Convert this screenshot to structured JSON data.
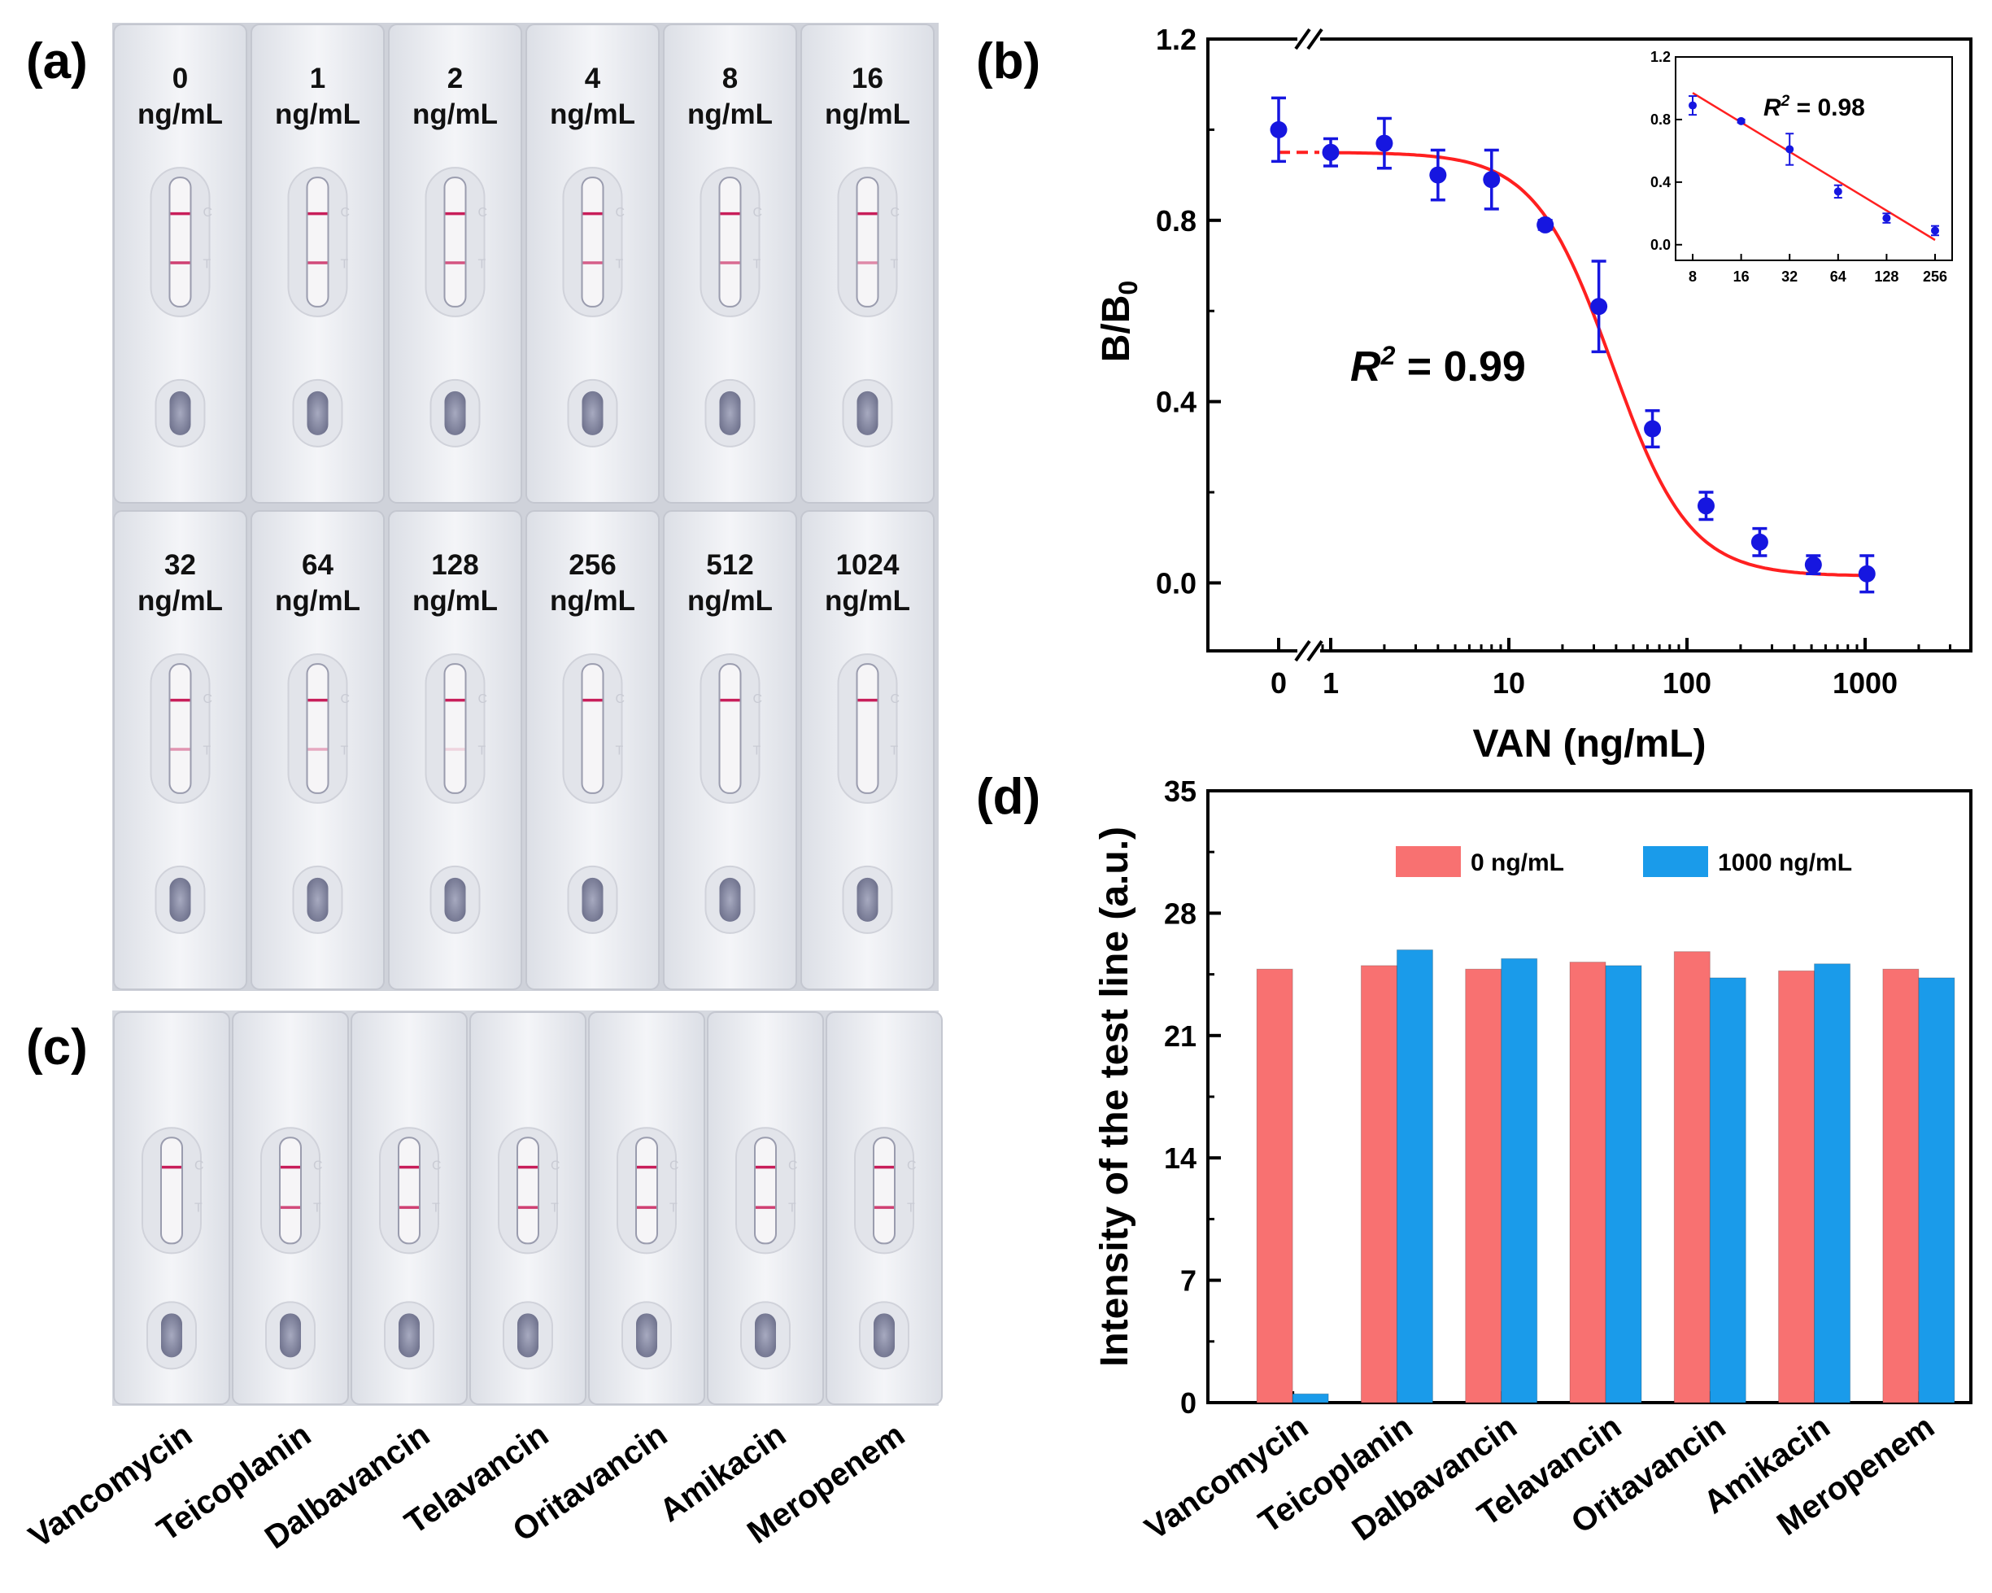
{
  "panels": {
    "a": {
      "letter": "(a)",
      "row1": [
        {
          "conc": "0",
          "unit": "ng/mL",
          "c_intensity": 1.0,
          "t_intensity": 0.85
        },
        {
          "conc": "1",
          "unit": "ng/mL",
          "c_intensity": 1.0,
          "t_intensity": 0.8
        },
        {
          "conc": "2",
          "unit": "ng/mL",
          "c_intensity": 1.0,
          "t_intensity": 0.75
        },
        {
          "conc": "4",
          "unit": "ng/mL",
          "c_intensity": 1.0,
          "t_intensity": 0.7
        },
        {
          "conc": "8",
          "unit": "ng/mL",
          "c_intensity": 1.0,
          "t_intensity": 0.65
        },
        {
          "conc": "16",
          "unit": "ng/mL",
          "c_intensity": 1.0,
          "t_intensity": 0.5
        }
      ],
      "row2": [
        {
          "conc": "32",
          "unit": "ng/mL",
          "c_intensity": 1.0,
          "t_intensity": 0.45
        },
        {
          "conc": "64",
          "unit": "ng/mL",
          "c_intensity": 1.0,
          "t_intensity": 0.35
        },
        {
          "conc": "128",
          "unit": "ng/mL",
          "c_intensity": 1.0,
          "t_intensity": 0.15
        },
        {
          "conc": "256",
          "unit": "ng/mL",
          "c_intensity": 1.0,
          "t_intensity": 0.0
        },
        {
          "conc": "512",
          "unit": "ng/mL",
          "c_intensity": 1.0,
          "t_intensity": 0.0
        },
        {
          "conc": "1024",
          "unit": "ng/mL",
          "c_intensity": 1.0,
          "t_intensity": 0.0
        }
      ]
    },
    "c": {
      "letter": "(c)",
      "strips": [
        {
          "drug": "Vancomycin",
          "c_intensity": 1.0,
          "t_intensity": 0.0
        },
        {
          "drug": "Teicoplanin",
          "c_intensity": 1.0,
          "t_intensity": 0.8
        },
        {
          "drug": "Dalbavancin",
          "c_intensity": 1.0,
          "t_intensity": 0.85
        },
        {
          "drug": "Telavancin",
          "c_intensity": 1.0,
          "t_intensity": 0.85
        },
        {
          "drug": "Oritavancin",
          "c_intensity": 1.0,
          "t_intensity": 0.85
        },
        {
          "drug": "Amikacin",
          "c_intensity": 1.0,
          "t_intensity": 0.85
        },
        {
          "drug": "Meropenem",
          "c_intensity": 1.0,
          "t_intensity": 0.85
        }
      ]
    }
  },
  "chart_data": [
    {
      "panel": "(b)",
      "type": "scatter",
      "title": "",
      "xlabel": "VAN (ng/mL)",
      "ylabel_main": "B/B",
      "ylabel_sub": "0",
      "xscale": "log with axis break",
      "x_ticks": [
        "0",
        "1",
        "10",
        "100",
        "1000"
      ],
      "y_ticks": [
        "0.0",
        "0.4",
        "0.8",
        "1.2"
      ],
      "ylim": [
        -0.15,
        1.2
      ],
      "points": [
        {
          "x": 0,
          "y": 1.0,
          "err": 0.07
        },
        {
          "x": 1,
          "y": 0.95,
          "err": 0.03
        },
        {
          "x": 2,
          "y": 0.97,
          "err": 0.055
        },
        {
          "x": 4,
          "y": 0.9,
          "err": 0.055
        },
        {
          "x": 8,
          "y": 0.89,
          "err": 0.065
        },
        {
          "x": 16,
          "y": 0.79,
          "err": 0.01
        },
        {
          "x": 32,
          "y": 0.61,
          "err": 0.1
        },
        {
          "x": 64,
          "y": 0.34,
          "err": 0.04
        },
        {
          "x": 128,
          "y": 0.17,
          "err": 0.03
        },
        {
          "x": 256,
          "y": 0.09,
          "err": 0.03
        },
        {
          "x": 512,
          "y": 0.04,
          "err": 0.02
        },
        {
          "x": 1024,
          "y": 0.02,
          "err": 0.04
        }
      ],
      "fit": {
        "type": "4PL",
        "top": 0.95,
        "bottom": 0.015,
        "ic50": 38,
        "hill": 2.0
      },
      "annotation_r2": {
        "prefix": "R",
        "sup": "2",
        "value": " = 0.99"
      },
      "inset": {
        "type": "scatter",
        "x_ticks": [
          "8",
          "16",
          "32",
          "64",
          "128",
          "256"
        ],
        "y_ticks": [
          "0.0",
          "0.4",
          "0.8",
          "1.2"
        ],
        "ylim": [
          -0.1,
          1.2
        ],
        "points": [
          {
            "x": 8,
            "y": 0.89,
            "err": 0.06
          },
          {
            "x": 16,
            "y": 0.79,
            "err": 0.01
          },
          {
            "x": 32,
            "y": 0.61,
            "err": 0.1
          },
          {
            "x": 64,
            "y": 0.34,
            "err": 0.04
          },
          {
            "x": 128,
            "y": 0.17,
            "err": 0.03
          },
          {
            "x": 256,
            "y": 0.09,
            "err": 0.03
          }
        ],
        "fit_line": {
          "x0": 8,
          "y0": 0.97,
          "x1": 256,
          "y1": 0.03
        },
        "annotation_r2": {
          "prefix": "R",
          "sup": "2",
          "value": " = 0.98"
        }
      }
    },
    {
      "panel": "(d)",
      "type": "bar",
      "title": "",
      "xlabel": "",
      "ylabel": "Intensity of the test line (a.u.)",
      "ylim": [
        0,
        35
      ],
      "y_ticks": [
        "0",
        "7",
        "14",
        "21",
        "28",
        "35"
      ],
      "categories": [
        "Vancomycin",
        "Teicoplanin",
        "Dalbavancin",
        "Telavancin",
        "Oritavancin",
        "Amikacin",
        "Meropenem"
      ],
      "series": [
        {
          "name": "0 ng/mL",
          "color": "#f87171",
          "values": [
            24.8,
            25.0,
            24.8,
            25.2,
            25.8,
            24.7,
            24.8
          ]
        },
        {
          "name": "1000 ng/mL",
          "color": "#1a9bea",
          "values": [
            0.5,
            25.9,
            25.4,
            25.0,
            24.3,
            25.1,
            24.3
          ]
        }
      ],
      "legend_position": "top"
    }
  ]
}
